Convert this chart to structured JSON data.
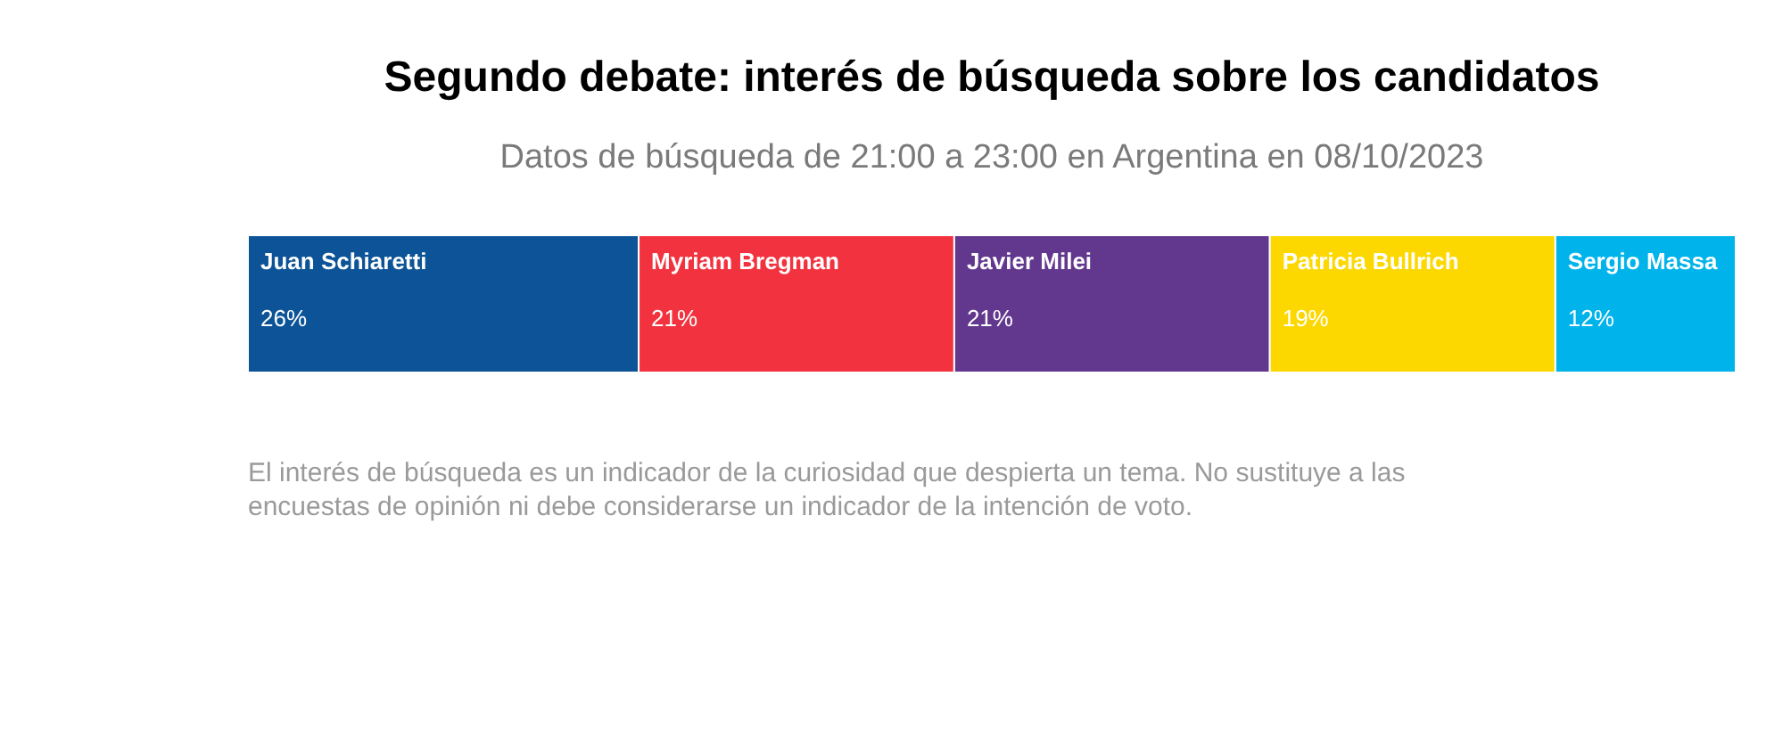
{
  "chart_data": {
    "type": "bar",
    "title": "Segundo debate: interés de búsqueda sobre los candidatos",
    "subtitle": "Datos de búsqueda de 21:00 a 23:00 en Argentina en 08/10/2023",
    "orientation": "horizontal",
    "stacked": true,
    "categories": [
      null
    ],
    "xlim": [
      0,
      99
    ],
    "series": [
      {
        "name": "Juan Schiaretti",
        "color": "#0c5497",
        "values": [
          26
        ],
        "value_labels": [
          "26%"
        ]
      },
      {
        "name": "Myriam Bregman",
        "color": "#f2333f",
        "values": [
          21
        ],
        "value_labels": [
          "21%"
        ]
      },
      {
        "name": "Javier Milei",
        "color": "#62388e",
        "values": [
          21
        ],
        "value_labels": [
          "21%"
        ]
      },
      {
        "name": "Patricia Bullrich",
        "color": "#fdd800",
        "values": [
          19
        ],
        "value_labels": [
          "19%"
        ]
      },
      {
        "name": "Sergio Massa",
        "color": "#00b3ea",
        "values": [
          12
        ],
        "value_labels": [
          "12%"
        ]
      }
    ],
    "annotations": [
      "El interés de búsqueda es un indicador de la curiosidad que despierta un tema. No sustituye a las encuestas de opinión ni debe considerarse un indicador de la intención de voto."
    ]
  }
}
